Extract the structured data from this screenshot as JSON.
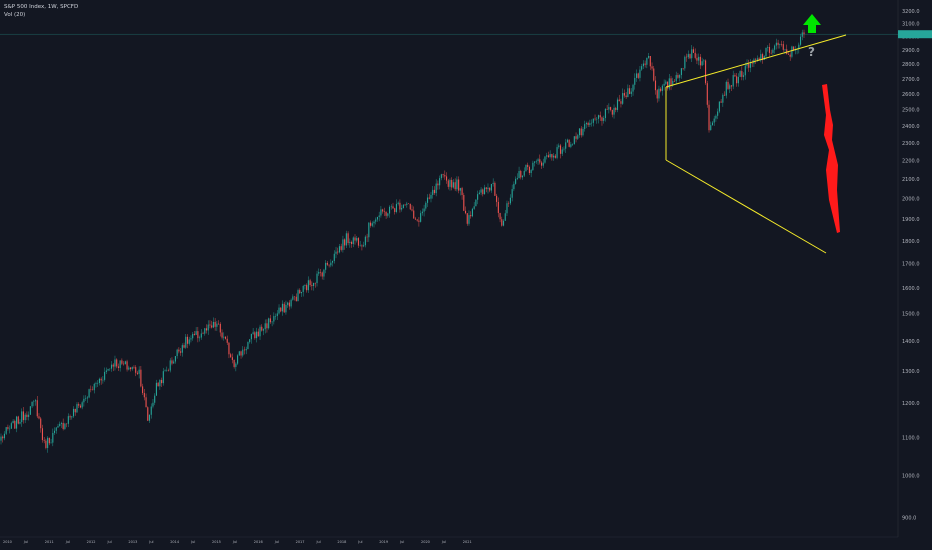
{
  "header": {
    "symbol_line": "S&P 500 Index, 1W, SPCFD",
    "volume_line": "Vol (20)"
  },
  "colors": {
    "background": "#131722",
    "up": "#26a69a",
    "down": "#ef5350",
    "trendline": "#f5eb2a",
    "arrow_up": "#00e600",
    "arrow_down": "#ff1a1a",
    "last_price": "#26a69a",
    "axis_text": "#b2b5be"
  },
  "chart_data": {
    "type": "candlestick",
    "y_scale": "log",
    "ylim": [
      858,
      3290
    ],
    "y_ticks": [
      900,
      1000,
      1100,
      1200,
      1300,
      1400,
      1500,
      1600,
      1700,
      1800,
      1900,
      2000,
      2100,
      2200,
      2300,
      2400,
      2500,
      2600,
      2700,
      2800,
      2900,
      3000,
      3100,
      3200
    ],
    "y_tick_labels": [
      "900.0",
      "1000.0",
      "1100.0",
      "1200.0",
      "1300.0",
      "1400.0",
      "1500.0",
      "1600.0",
      "1700.0",
      "1800.0",
      "1900.0",
      "2000.0",
      "2100.0",
      "2200.0",
      "2300.0",
      "2400.0",
      "2500.0",
      "2600.0",
      "2700.0",
      "2800.0",
      "2900.0",
      "3000.0",
      "3100.0",
      "3200.0"
    ],
    "x_tick_labels": [
      "2010",
      "Jul",
      "2011",
      "Jul",
      "2012",
      "Jul",
      "2013",
      "Jul",
      "2014",
      "Jul",
      "2015",
      "Jul",
      "2016",
      "Jul",
      "2017",
      "Jul",
      "2018",
      "Jul",
      "2019",
      "Jul",
      "2020",
      "Jul",
      "2021"
    ],
    "anchors": [
      [
        0,
        1100
      ],
      [
        20,
        1200
      ],
      [
        25,
        1080
      ],
      [
        45,
        1190
      ],
      [
        65,
        1330
      ],
      [
        80,
        1300
      ],
      [
        85,
        1150
      ],
      [
        90,
        1250
      ],
      [
        105,
        1390
      ],
      [
        125,
        1460
      ],
      [
        135,
        1330
      ],
      [
        145,
        1410
      ],
      [
        165,
        1530
      ],
      [
        185,
        1660
      ],
      [
        200,
        1810
      ],
      [
        210,
        1800
      ],
      [
        215,
        1900
      ],
      [
        235,
        1990
      ],
      [
        240,
        1880
      ],
      [
        255,
        2100
      ],
      [
        265,
        2070
      ],
      [
        270,
        1900
      ],
      [
        275,
        2000
      ],
      [
        285,
        2080
      ],
      [
        290,
        1880
      ],
      [
        300,
        2130
      ],
      [
        325,
        2270
      ],
      [
        345,
        2440
      ],
      [
        355,
        2500
      ],
      [
        365,
        2650
      ],
      [
        375,
        2870
      ],
      [
        380,
        2600
      ],
      [
        390,
        2700
      ],
      [
        400,
        2900
      ],
      [
        407,
        2800
      ],
      [
        410,
        2400
      ],
      [
        420,
        2650
      ],
      [
        440,
        2850
      ],
      [
        450,
        2950
      ],
      [
        455,
        2860
      ],
      [
        460,
        2920
      ],
      [
        465,
        3020
      ]
    ],
    "candle_count": 466,
    "last_price": 3020,
    "annotations": {
      "question_mark": "?"
    }
  }
}
